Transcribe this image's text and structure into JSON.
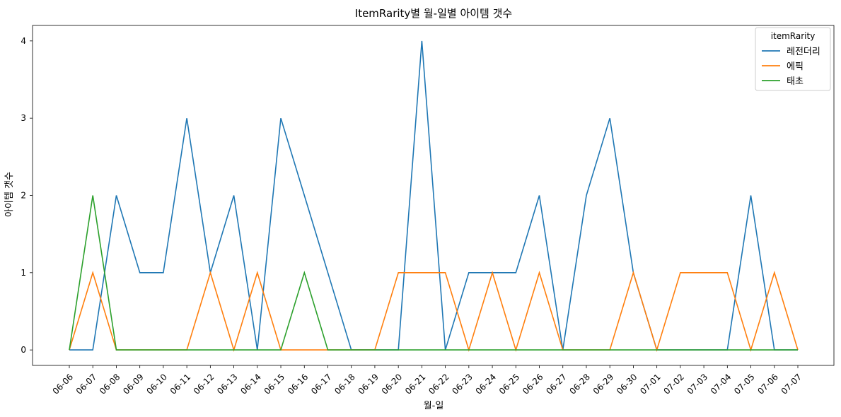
{
  "chart_data": {
    "type": "line",
    "title": "ItemRarity별 월-일별 아이템 갯수",
    "xlabel": "월-일",
    "ylabel": "아이템 갯수",
    "ylim": [
      -0.2,
      4.2
    ],
    "yticks": [
      0,
      1,
      2,
      3,
      4
    ],
    "grid": false,
    "legend": {
      "title": "itemRarity",
      "placement": "top-right"
    },
    "categories": [
      "06-06",
      "06-07",
      "06-08",
      "06-09",
      "06-10",
      "06-11",
      "06-12",
      "06-13",
      "06-14",
      "06-15",
      "06-16",
      "06-17",
      "06-18",
      "06-19",
      "06-20",
      "06-21",
      "06-22",
      "06-23",
      "06-24",
      "06-25",
      "06-26",
      "06-27",
      "06-28",
      "06-29",
      "06-30",
      "07-01",
      "07-02",
      "07-03",
      "07-04",
      "07-05",
      "07-06",
      "07-07"
    ],
    "series": [
      {
        "name": "레전더리",
        "color": "#1f77b4",
        "values": [
          0,
          0,
          2,
          1,
          1,
          3,
          1,
          2,
          0,
          3,
          2,
          1,
          0,
          0,
          0,
          4,
          0,
          1,
          1,
          1,
          2,
          0,
          2,
          3,
          1,
          0,
          0,
          0,
          0,
          2,
          0,
          0
        ]
      },
      {
        "name": "에픽",
        "color": "#ff7f0e",
        "values": [
          0,
          1,
          0,
          0,
          0,
          0,
          1,
          0,
          1,
          0,
          0,
          0,
          0,
          0,
          1,
          1,
          1,
          0,
          1,
          0,
          1,
          0,
          0,
          0,
          1,
          0,
          1,
          1,
          1,
          0,
          1,
          0
        ]
      },
      {
        "name": "태초",
        "color": "#2ca02c",
        "values": [
          0,
          2,
          0,
          0,
          0,
          0,
          0,
          0,
          0,
          0,
          1,
          0,
          0,
          0,
          0,
          0,
          0,
          0,
          0,
          0,
          0,
          0,
          0,
          0,
          0,
          0,
          0,
          0,
          0,
          0,
          0,
          0
        ]
      }
    ]
  }
}
